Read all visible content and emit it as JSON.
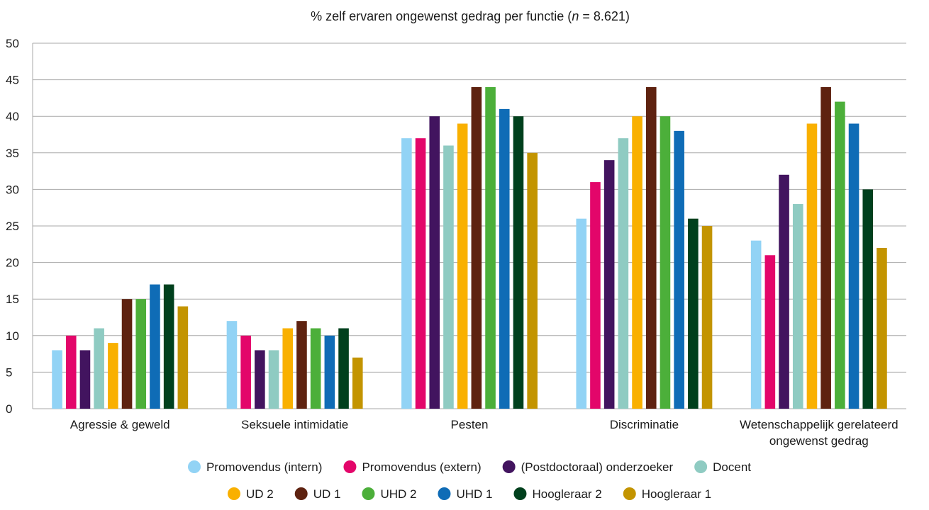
{
  "chart_data": {
    "type": "bar",
    "title": {
      "prefix": "% zelf ervaren ongewenst gedrag per functie (",
      "n_symbol": "n",
      "suffix": " = 8.621)"
    },
    "categories": [
      [
        "Agressie & geweld"
      ],
      [
        "Seksuele intimidatie"
      ],
      [
        "Pesten"
      ],
      [
        "Discriminatie"
      ],
      [
        "Wetenschappelijk gerelateerd",
        "ongewenst gedrag"
      ]
    ],
    "ylim": [
      0,
      50
    ],
    "yticks": [
      0,
      5,
      10,
      15,
      20,
      25,
      30,
      35,
      40,
      45,
      50
    ],
    "grid": true,
    "legend_position": "bottom",
    "series": [
      {
        "name": "Promovendus (intern)",
        "color": "#92d3f5",
        "values": [
          8,
          12,
          37,
          26,
          23
        ]
      },
      {
        "name": "Promovendus (extern)",
        "color": "#e3066a",
        "values": [
          10,
          10,
          37,
          31,
          21
        ]
      },
      {
        "name": "(Postdoctoraal) onderzoeker",
        "color": "#42145f",
        "values": [
          8,
          8,
          40,
          34,
          32
        ]
      },
      {
        "name": "Docent",
        "color": "#8fcbc2",
        "values": [
          11,
          8,
          36,
          37,
          28
        ]
      },
      {
        "name": "UD 2",
        "color": "#f9b000",
        "values": [
          9,
          11,
          39,
          40,
          39
        ]
      },
      {
        "name": "UD 1",
        "color": "#5e2210",
        "values": [
          15,
          12,
          44,
          44,
          44
        ]
      },
      {
        "name": "UHD 2",
        "color": "#4caf3a",
        "values": [
          15,
          11,
          44,
          40,
          42
        ]
      },
      {
        "name": "UHD 1",
        "color": "#0f6cb6",
        "values": [
          17,
          10,
          41,
          38,
          39
        ]
      },
      {
        "name": "Hoogleraar 2",
        "color": "#00401d",
        "values": [
          17,
          11,
          40,
          26,
          30
        ]
      },
      {
        "name": "Hoogleraar 1",
        "color": "#c39400",
        "values": [
          14,
          7,
          35,
          25,
          22
        ]
      }
    ],
    "legend_rows": [
      [
        0,
        1,
        2,
        3
      ],
      [
        4,
        5,
        6,
        7,
        8,
        9
      ]
    ]
  }
}
